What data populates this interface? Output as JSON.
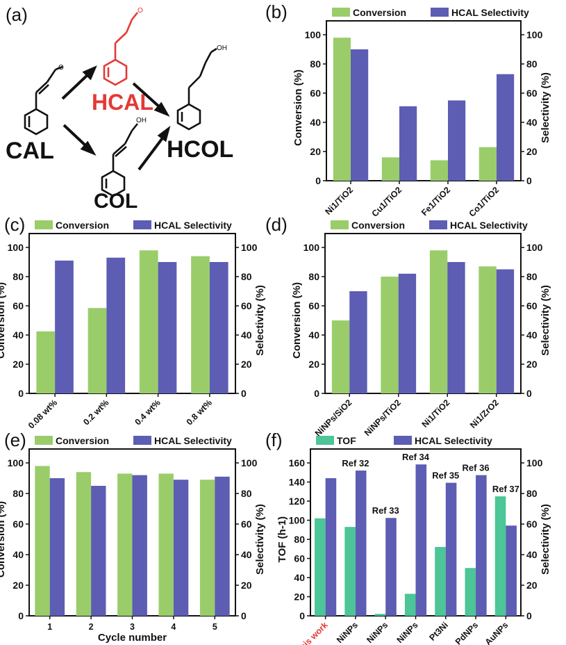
{
  "colors": {
    "conversion": "#9ACD6A",
    "selectivity": "#5C5DB3",
    "tof": "#4CC597",
    "highlight_red": "#E53935"
  },
  "scheme": {
    "panel_label": "(a)",
    "cal": "CAL",
    "hcal": "HCAL",
    "col": "COL",
    "hcol": "HCOL",
    "oh": "OH",
    "o": "O"
  },
  "chart_data": [
    {
      "panel_label": "(b)",
      "type": "bar",
      "categories": [
        "Ni1/TiO2",
        "Cu1/TiO2",
        "Fe1/TiO2",
        "Co1/TiO2"
      ],
      "series": [
        {
          "name": "Conversion",
          "values": [
            98,
            16,
            14,
            23
          ]
        },
        {
          "name": "HCAL Selectivity",
          "values": [
            90,
            51,
            55,
            73
          ]
        }
      ],
      "ylabel_left": "Conversion (%)",
      "ylabel_right": "Selectivity (%)",
      "ylim": [
        0,
        100
      ],
      "yticks": [
        0,
        20,
        40,
        60,
        80,
        100
      ],
      "xlabel": "",
      "legend": "top"
    },
    {
      "panel_label": "(c)",
      "type": "bar",
      "categories": [
        "0.08 wt%",
        "0.2 wt%",
        "0.4 wt%",
        "0.8 wt%"
      ],
      "series": [
        {
          "name": "Conversion",
          "values": [
            42.5,
            58.5,
            98,
            94
          ]
        },
        {
          "name": "HCAL Selectivity",
          "values": [
            91,
            93,
            90,
            90
          ]
        }
      ],
      "ylabel_left": "Conversion (%)",
      "ylabel_right": "Selectivity (%)",
      "ylim": [
        0,
        100
      ],
      "yticks": [
        0,
        20,
        40,
        60,
        80,
        100
      ],
      "xlabel": "",
      "legend": "top"
    },
    {
      "panel_label": "(d)",
      "type": "bar",
      "categories": [
        "NiNPs/SiO2",
        "NiNPs/TiO2",
        "Ni1/TiO2",
        "Ni1/ZrO2"
      ],
      "series": [
        {
          "name": "Conversion",
          "values": [
            50,
            80,
            98,
            87
          ]
        },
        {
          "name": "HCAL Selectivity",
          "values": [
            70,
            82,
            90,
            85
          ]
        }
      ],
      "ylabel_left": "Conversion (%)",
      "ylabel_right": "Selectivity (%)",
      "ylim": [
        0,
        100
      ],
      "yticks": [
        0,
        20,
        40,
        60,
        80,
        100
      ],
      "xlabel": "",
      "legend": "top"
    },
    {
      "panel_label": "(e)",
      "type": "bar",
      "categories": [
        "1",
        "2",
        "3",
        "4",
        "5"
      ],
      "series": [
        {
          "name": "Conversion",
          "values": [
            98,
            94,
            93,
            93,
            89
          ]
        },
        {
          "name": "HCAL Selectivity",
          "values": [
            90,
            85,
            92,
            89,
            91
          ]
        }
      ],
      "ylabel_left": "Conversion (%)",
      "ylabel_right": "Selectivity (%)",
      "ylim": [
        0,
        100
      ],
      "yticks": [
        0,
        20,
        40,
        60,
        80,
        100
      ],
      "xlabel": "Cycle number",
      "legend": "top"
    },
    {
      "panel_label": "(f)",
      "type": "bar",
      "categories": [
        "This work",
        "NiNPs",
        "NiNPs",
        "NiNPs",
        "Pt3Ni",
        "PdNPs",
        "AuNPs"
      ],
      "annotations": [
        "",
        "Ref 32",
        "Ref 33",
        "Ref 34",
        "Ref 35",
        "Ref 36",
        "Ref 37"
      ],
      "series": [
        {
          "name": "TOF",
          "values": [
            102,
            93,
            2,
            23,
            72,
            50,
            125
          ],
          "axis": "left"
        },
        {
          "name": "HCAL Selectivity",
          "values": [
            90,
            95,
            64,
            99,
            87,
            92,
            59
          ],
          "axis": "right"
        }
      ],
      "ylabel_left": "TOF (h-1)",
      "ylabel_right": "Selectivity (%)",
      "ylim_left": [
        0,
        160
      ],
      "yticks_left": [
        0,
        20,
        40,
        60,
        80,
        100,
        120,
        140,
        160
      ],
      "ylim_right": [
        0,
        100
      ],
      "yticks_right": [
        0,
        20,
        40,
        60,
        80,
        100
      ],
      "xlabel": "",
      "legend": "top"
    }
  ]
}
